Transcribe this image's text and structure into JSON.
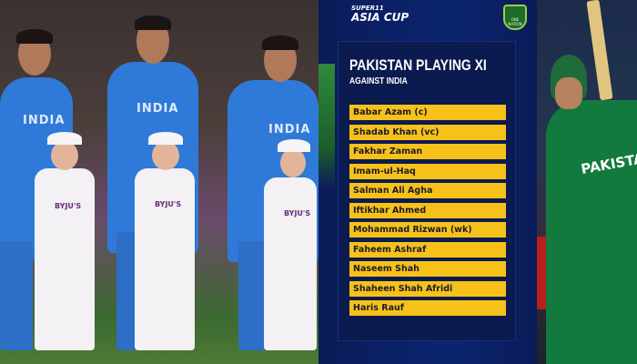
{
  "photo_left": {
    "jersey_text": "INDIA",
    "kid_shirt_text": "BYJU'S"
  },
  "graphic": {
    "logo": {
      "super": "SUPER11",
      "name": "ASIA CUP"
    },
    "badge": "ONE NATION",
    "title": "PAKISTAN PLAYING XI",
    "subtitle": "AGAINST INDIA",
    "players": [
      "Babar Azam (c)",
      "Shadab Khan (vc)",
      "Fakhar Zaman",
      "Imam-ul-Haq",
      "Salman Ali Agha",
      "Iftikhar Ahmed",
      "Mohammad Rizwan (wk)",
      "Faheem Ashraf",
      "Naseem Shah",
      "Shaheen Shah Afridi",
      "Haris Rauf"
    ],
    "colors": {
      "background": "#0c2470",
      "row": "#f6c21a",
      "row_text": "#1c1a2a"
    }
  },
  "photo_right": {
    "jersey_text": "PAKISTAN"
  }
}
